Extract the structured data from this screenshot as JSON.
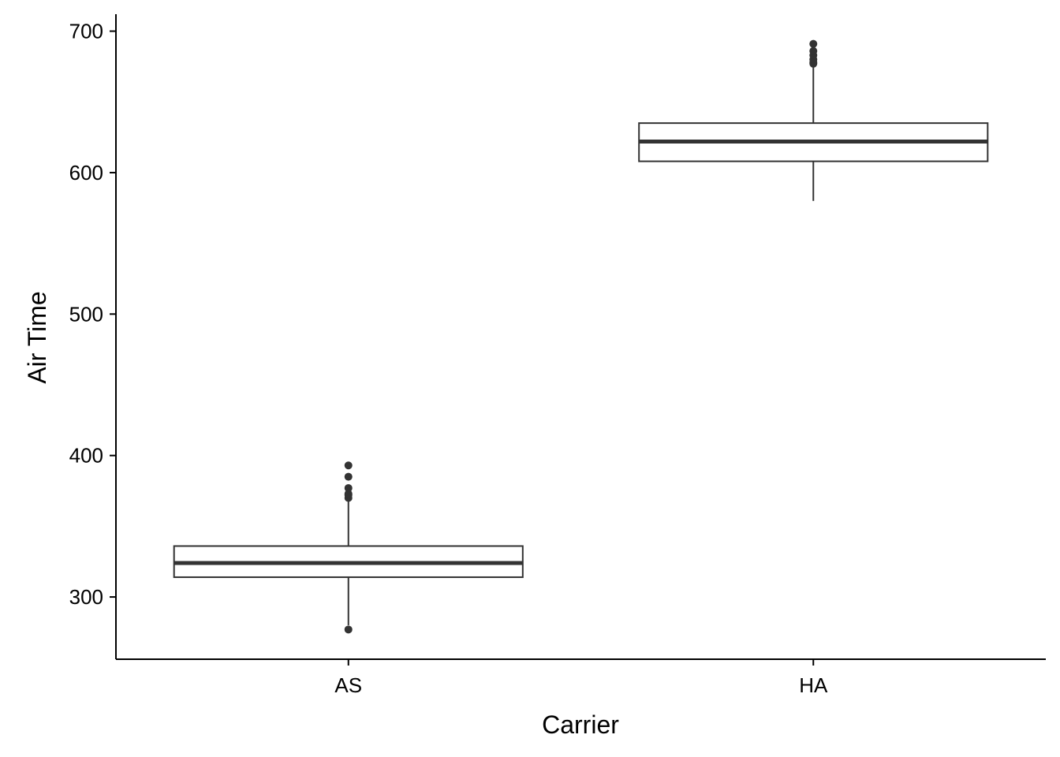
{
  "chart_data": {
    "type": "boxplot",
    "title": "",
    "xlabel": "Carrier",
    "ylabel": "Air Time",
    "categories": [
      "AS",
      "HA"
    ],
    "yticks": [
      300,
      400,
      500,
      600,
      700
    ],
    "ylim": [
      256,
      712
    ],
    "grid": false,
    "legend": "none",
    "boxes": [
      {
        "category": "AS",
        "whisker_low": 280,
        "q1": 314,
        "median": 324,
        "q3": 336,
        "whisker_high": 368,
        "outliers": [
          277,
          370,
          372,
          373,
          377,
          385,
          393
        ]
      },
      {
        "category": "HA",
        "whisker_low": 580,
        "q1": 608,
        "median": 622,
        "q3": 635,
        "whisker_high": 675,
        "outliers": [
          677,
          678,
          680,
          683,
          686,
          691
        ]
      }
    ],
    "colors": {
      "box_line": "#333333",
      "axis": "#000000",
      "background": "#ffffff"
    }
  }
}
